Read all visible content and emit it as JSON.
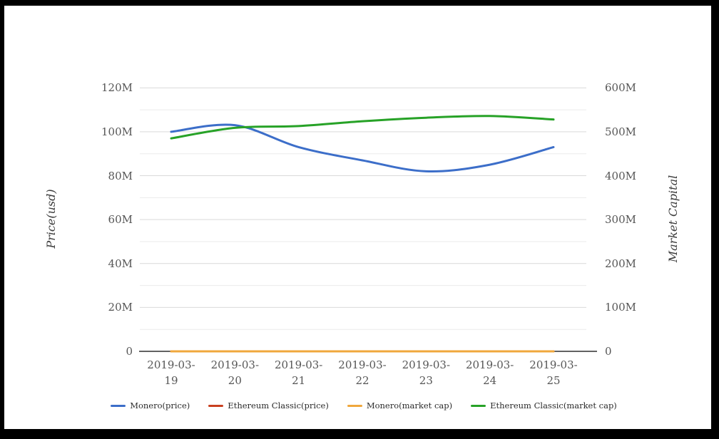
{
  "window": {
    "background": "#ffffff",
    "frame_color": "#000000"
  },
  "chart_data": {
    "type": "line",
    "title": "",
    "values_unit": "millions (M)",
    "x": [
      "2019-03-19",
      "2019-03-20",
      "2019-03-21",
      "2019-03-22",
      "2019-03-23",
      "2019-03-24",
      "2019-03-25"
    ],
    "left_axis": {
      "title": "Price(usd)",
      "min": 0,
      "max": 120,
      "tick_step": 20,
      "minor_step": 10,
      "ticks": [
        {
          "value": 0,
          "label": "0"
        },
        {
          "value": 20,
          "label": "20M"
        },
        {
          "value": 40,
          "label": "40M"
        },
        {
          "value": 60,
          "label": "60M"
        },
        {
          "value": 80,
          "label": "80M"
        },
        {
          "value": 100,
          "label": "100M"
        },
        {
          "value": 120,
          "label": "120M"
        }
      ]
    },
    "right_axis": {
      "title": "Market Capital",
      "min": 0,
      "max": 600,
      "tick_step": 100,
      "minor_step": 50,
      "ticks": [
        {
          "value": 0,
          "label": "0"
        },
        {
          "value": 100,
          "label": "100M"
        },
        {
          "value": 200,
          "label": "200M"
        },
        {
          "value": 300,
          "label": "300M"
        },
        {
          "value": 400,
          "label": "400M"
        },
        {
          "value": 500,
          "label": "500M"
        },
        {
          "value": 600,
          "label": "600M"
        }
      ]
    },
    "series": [
      {
        "name": "Monero(price)",
        "axis": "left",
        "color": "#3c6ec9",
        "values": [
          100,
          103,
          93,
          87,
          82,
          85,
          93
        ]
      },
      {
        "name": "Ethereum Classic(price)",
        "axis": "left",
        "color": "#c9401f",
        "values": [
          0,
          0,
          0,
          0,
          0,
          0,
          0
        ]
      },
      {
        "name": "Monero(market cap)",
        "axis": "right",
        "color": "#f0a73c",
        "values": [
          0,
          0,
          0,
          0,
          0,
          0,
          0
        ]
      },
      {
        "name": "Ethereum Classic(market cap)",
        "axis": "right",
        "color": "#27a227",
        "values": [
          485,
          509,
          513,
          524,
          532,
          536,
          528
        ]
      }
    ],
    "legend_position": "bottom",
    "grid": true,
    "grid_major_color": "#d9d9d9",
    "grid_minor_color": "#ebebeb",
    "axis_line_color": "#2e2e2e",
    "tick_label_color": "#565656"
  }
}
